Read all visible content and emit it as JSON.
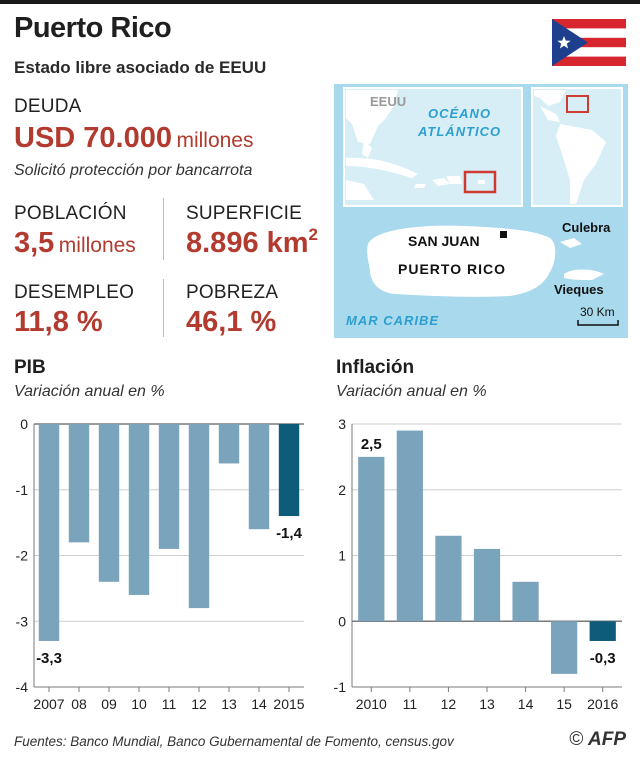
{
  "header": {
    "title": "Puerto Rico",
    "subtitle": "Estado libre asociado de EEUU"
  },
  "debt": {
    "label": "DEUDA",
    "value": "USD 70.000",
    "unit": "millones",
    "note": "Solicitó protección por bancarrota"
  },
  "stats": {
    "population": {
      "label": "POBLACIÓN",
      "value": "3,5",
      "unit": "millones"
    },
    "area": {
      "label": "SUPERFICIE",
      "value": "8.896 km",
      "sup": "2"
    },
    "unemployment": {
      "label": "DESEMPLEO",
      "value": "11,8 %"
    },
    "poverty": {
      "label": "POBREZA",
      "value": "46,1 %"
    }
  },
  "map": {
    "eeuu": "EEUU",
    "ocean_line1": "OCÉANO",
    "ocean_line2": "ATLÁNTICO",
    "capital": "SAN JUAN",
    "island": "PUERTO RICO",
    "culebra": "Culebra",
    "vieques": "Vieques",
    "sea": "MAR CARIBE",
    "scale": "30 Km"
  },
  "colors": {
    "accent_red": "#b23a2e",
    "bar": "#7aa3bc",
    "bar_highlight": "#0f5b7a",
    "sea": "#a9d9ec",
    "land": "#ffffff",
    "flag_red": "#d7262e",
    "flag_blue": "#1d3f8e"
  },
  "chart_data": [
    {
      "type": "bar",
      "title": "PIB",
      "subtitle": "Variación anual en %",
      "categories": [
        "2007",
        "08",
        "09",
        "10",
        "11",
        "12",
        "13",
        "14",
        "2015"
      ],
      "values": [
        -3.3,
        -1.8,
        -2.4,
        -2.6,
        -1.9,
        -2.8,
        -0.6,
        -1.6,
        -1.4
      ],
      "data_labels": {
        "2007": "-3,3",
        "2015": "-1,4"
      },
      "highlight": "2015",
      "ylim": [
        -4,
        0
      ],
      "yticks": [
        "0",
        "-1",
        "-2",
        "-3",
        "-4"
      ],
      "yticks_values": [
        0,
        -1,
        -2,
        -3,
        -4
      ],
      "grid": true
    },
    {
      "type": "bar",
      "title": "Inflación",
      "subtitle": "Variación anual en %",
      "categories": [
        "2010",
        "11",
        "12",
        "13",
        "14",
        "15",
        "2016"
      ],
      "values": [
        2.5,
        2.9,
        1.3,
        1.1,
        0.6,
        -0.8,
        -0.3
      ],
      "data_labels": {
        "2010": "2,5",
        "2016": "-0,3"
      },
      "highlight": "2016",
      "ylim": [
        -1,
        3
      ],
      "yticks": [
        "3",
        "2",
        "1",
        "0",
        "-1"
      ],
      "yticks_values": [
        3,
        2,
        1,
        0,
        -1
      ],
      "grid": true
    }
  ],
  "footer": {
    "sources": "Fuentes: Banco Mundial, Banco Gubernamental de Fomento, census.gov",
    "copyright": "©",
    "brand": "AFP"
  }
}
